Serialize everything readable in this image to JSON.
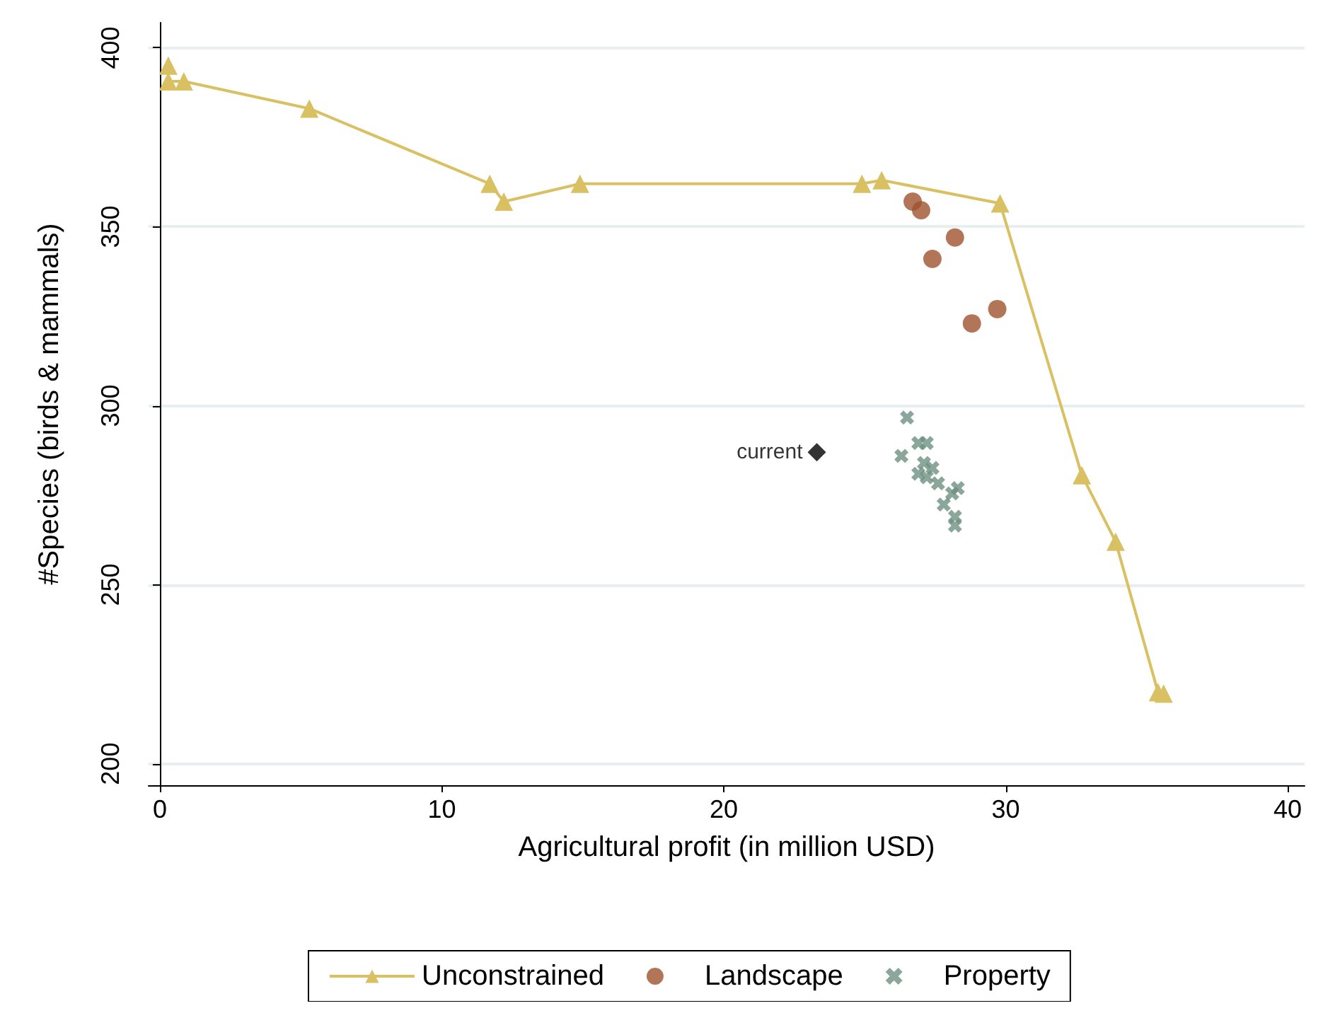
{
  "chart_data": {
    "type": "scatter",
    "xlabel": "Agricultural profit (in million USD)",
    "ylabel": "#Species (birds & mammals)",
    "xlim": [
      -0.4,
      40.6
    ],
    "ylim": [
      194,
      407
    ],
    "xticks": [
      0,
      10,
      20,
      30,
      40
    ],
    "yticks": [
      200,
      250,
      300,
      350,
      400
    ],
    "grid": "y",
    "legend": "bottom",
    "series": [
      {
        "name": "Unconstrained",
        "type": "line",
        "marker": "triangle",
        "color": "#d9c062",
        "x": [
          0.3,
          0.3,
          0.85,
          5.3,
          11.7,
          12.2,
          14.9,
          24.9,
          25.6,
          29.8,
          32.7,
          33.9,
          35.4,
          35.6
        ],
        "values": [
          395,
          390.6,
          390.6,
          383,
          362,
          357,
          362,
          362,
          363,
          356.5,
          280.6,
          262,
          220,
          219.6
        ]
      },
      {
        "name": "Landscape",
        "type": "scatter",
        "marker": "circle",
        "color": "#a0522d",
        "x": [
          26.7,
          27.0,
          27.4,
          28.2,
          28.8,
          29.7
        ],
        "values": [
          357,
          354.6,
          341,
          347,
          323,
          327
        ]
      },
      {
        "name": "Property",
        "type": "scatter",
        "marker": "cross",
        "color": "#6e9082",
        "x": [
          26.5,
          26.3,
          26.9,
          27.2,
          27.1,
          26.9,
          27.2,
          27.4,
          27.6,
          28.1,
          28.3,
          27.8,
          28.2,
          28.2
        ],
        "values": [
          296.7,
          286,
          289.6,
          289.6,
          284,
          281,
          280,
          282.6,
          278.3,
          275.5,
          277,
          272.4,
          269,
          266.5
        ]
      },
      {
        "type": "scatter",
        "marker": "diamond",
        "color": "#000000",
        "x": [
          23.3
        ],
        "values": [
          287
        ]
      }
    ],
    "annotations": [
      {
        "text": "current",
        "x": 23.3,
        "y": 287
      }
    ]
  }
}
